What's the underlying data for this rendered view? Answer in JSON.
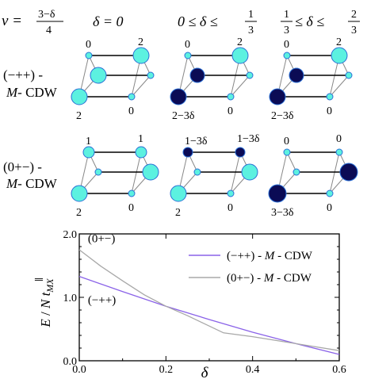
{
  "header": {
    "nu_label": "ν =",
    "nu_num": "3−δ",
    "nu_den": "4",
    "columns": [
      "δ = 0",
      "0 ≤ δ ≤ ",
      "1",
      "3",
      "1",
      "3",
      " ≤ δ ≤ ",
      "2",
      "3"
    ]
  },
  "rows": [
    {
      "label_line1": "(−++) -",
      "label_line2_italic": "M",
      "label_line2_rest": "- CDW"
    },
    {
      "label_line1": "(0+−) -",
      "label_line2_italic": "M",
      "label_line2_rest": "- CDW"
    }
  ],
  "clusters": [
    {
      "labels": {
        "top_left": "0",
        "top_right": "2",
        "bottom_left": "2",
        "bottom_right": "0"
      }
    },
    {
      "labels": {
        "top_left": "0",
        "top_right": "2",
        "bottom_left": "2−3δ",
        "bottom_right": "0"
      }
    },
    {
      "labels": {
        "top_left": "0",
        "top_right": "2",
        "bottom_left": "2−3δ",
        "bottom_right": "0"
      }
    },
    {
      "labels": {
        "top_left": "1",
        "top_right": "1",
        "bottom_left": "2",
        "bottom_right": "0"
      }
    },
    {
      "labels": {
        "top_left": "1−3δ",
        "top_right": "1−3δ",
        "bottom_left": "2",
        "bottom_right": "0"
      }
    },
    {
      "labels": {
        "top_left": "0",
        "top_right": "0",
        "bottom_left": "3−3δ",
        "bottom_right": "0"
      }
    }
  ],
  "colors": {
    "light_site": "#5cf1e0",
    "dark_site": "#0b0b55",
    "site_stroke": "#2a6fd6",
    "bond": "#000000",
    "diag": "#888888",
    "series_mm": "#8a62e8",
    "series_zpm": "#a8a8a8"
  },
  "chart_data": {
    "type": "line",
    "xlabel": "δ",
    "ylabel": "E / N t∥MX",
    "xlim": [
      0.0,
      0.6
    ],
    "ylim": [
      0.0,
      2.0
    ],
    "xticks": [
      0.0,
      0.2,
      0.4,
      0.6
    ],
    "xtick_labels": [
      "0.0",
      "0.2",
      "0.4",
      "0.6"
    ],
    "yticks": [
      0.0,
      1.0,
      2.0
    ],
    "ytick_labels": [
      "0.0",
      "1.0",
      "2.0"
    ],
    "legend_position": "top-right",
    "series": [
      {
        "name": "(−++) - M - CDW",
        "legend_prefix": "(−++) - ",
        "legend_italic": "M",
        "legend_suffix": " - CDW",
        "color": "#8a62e8",
        "x": [
          0.0,
          0.1,
          0.2,
          0.3,
          0.4,
          0.5,
          0.6
        ],
        "y": [
          1.33,
          1.09,
          0.86,
          0.65,
          0.45,
          0.27,
          0.1
        ]
      },
      {
        "name": "(0+−) - M - CDW",
        "legend_prefix": "(0+−) - ",
        "legend_italic": "M",
        "legend_suffix": " - CDW",
        "color": "#a8a8a8",
        "x": [
          0.0,
          0.05,
          0.1,
          0.15,
          0.2,
          0.25,
          0.333,
          0.4,
          0.5,
          0.6
        ],
        "y": [
          1.75,
          1.49,
          1.26,
          1.04,
          0.86,
          0.71,
          0.44,
          0.38,
          0.27,
          0.16
        ]
      }
    ],
    "annotations": [
      {
        "text": "(0+−)",
        "x": 0.02,
        "y": 1.87
      },
      {
        "text": "(−++)",
        "x": 0.02,
        "y": 0.9
      }
    ]
  }
}
